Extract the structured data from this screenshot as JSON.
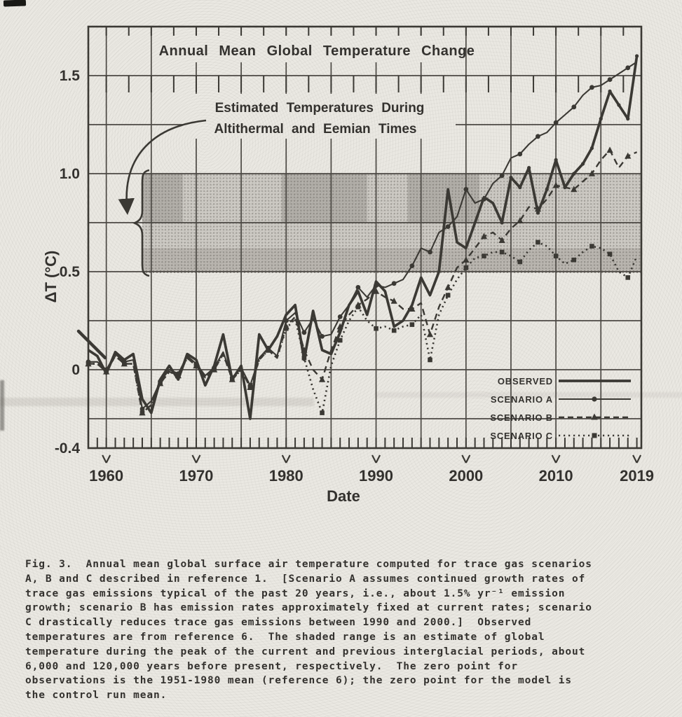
{
  "page": {
    "background": "#eae8e2",
    "ink_color": "#3b3934"
  },
  "chart_data": {
    "type": "line",
    "title": "Annual Mean Global Temperature Change",
    "annotation": {
      "line1": "Estimated Temperatures During",
      "line2": "Altithermal and Eemian Times"
    },
    "xlabel": "Date",
    "ylabel": "ΔT (°C)",
    "xlim": [
      1958,
      2019.5
    ],
    "ylim": [
      -0.4,
      1.75
    ],
    "grid": {
      "x_step_years": 5,
      "y_step": 0.25,
      "grid_on": true
    },
    "ytick_labels": [
      "1.5",
      "1.0",
      "0.5",
      "0",
      "-0.4"
    ],
    "ytick_values": [
      1.5,
      1.0,
      0.5,
      0,
      -0.4
    ],
    "xtick_labels": [
      "1960",
      "1970",
      "1980",
      "1990",
      "2000",
      "2010",
      "2019"
    ],
    "xtick_values": [
      1960,
      1970,
      1980,
      1990,
      2000,
      2010,
      2019
    ],
    "shaded_band": {
      "meaning": "Estimated temperatures during Altithermal and Eemian times",
      "y_from": 0.5,
      "y_to": 1.0,
      "x_from": 1964,
      "x_to": 2019.5
    },
    "legend_position": "lower right",
    "years": [
      1958,
      1959,
      1960,
      1961,
      1962,
      1963,
      1964,
      1965,
      1966,
      1967,
      1968,
      1969,
      1970,
      1971,
      1972,
      1973,
      1974,
      1975,
      1976,
      1977,
      1978,
      1979,
      1980,
      1981,
      1982,
      1983,
      1984,
      1985,
      1986,
      1987,
      1988,
      1989,
      1990,
      1991,
      1992,
      1993,
      1994,
      1995,
      1996,
      1997,
      1998,
      1999,
      2000,
      2001,
      2002,
      2003,
      2004,
      2005,
      2006,
      2007,
      2008,
      2009,
      2010,
      2011,
      2012,
      2013,
      2014,
      2015,
      2016,
      2017,
      2018,
      2019
    ],
    "series": [
      {
        "label": "OBSERVED",
        "key": "observed",
        "line": "solid",
        "marker": "dot-late",
        "values": [
          0.1,
          0.07,
          -0.02,
          0.09,
          0.05,
          0.08,
          -0.15,
          -0.22,
          -0.05,
          0.02,
          -0.05,
          0.08,
          0.05,
          -0.08,
          0.02,
          0.18,
          -0.05,
          0.02,
          -0.25,
          0.18,
          0.1,
          0.17,
          0.28,
          0.33,
          0.05,
          0.3,
          0.1,
          0.08,
          0.19,
          0.33,
          0.4,
          0.28,
          0.45,
          0.4,
          0.22,
          0.25,
          0.33,
          0.47,
          0.38,
          0.5,
          0.92,
          0.65,
          0.62,
          0.75,
          0.88,
          0.85,
          0.75,
          0.98,
          0.93,
          1.03,
          0.8,
          0.92,
          1.07,
          0.93,
          1.0,
          1.05,
          1.13,
          1.28,
          1.42,
          1.35,
          1.28,
          1.6
        ]
      },
      {
        "label": "SCENARIO A",
        "key": "scenario_a",
        "line": "solid",
        "marker": "circle",
        "values": [
          0.04,
          0.04,
          0.0,
          0.08,
          0.04,
          0.05,
          -0.2,
          -0.16,
          -0.06,
          0.0,
          -0.02,
          0.07,
          0.03,
          -0.03,
          0.01,
          0.09,
          -0.04,
          0.01,
          -0.08,
          0.06,
          0.11,
          0.07,
          0.25,
          0.29,
          0.19,
          0.26,
          0.17,
          0.18,
          0.27,
          0.33,
          0.42,
          0.37,
          0.43,
          0.42,
          0.44,
          0.46,
          0.53,
          0.62,
          0.6,
          0.7,
          0.73,
          0.78,
          0.92,
          0.85,
          0.87,
          0.95,
          0.99,
          1.08,
          1.1,
          1.15,
          1.19,
          1.21,
          1.26,
          1.3,
          1.34,
          1.4,
          1.44,
          1.45,
          1.48,
          1.51,
          1.54,
          1.57
        ]
      },
      {
        "label": "SCENARIO B",
        "key": "scenario_b",
        "line": "dashed",
        "marker": "triangle",
        "values": [
          0.03,
          0.03,
          -0.01,
          0.07,
          0.03,
          0.03,
          -0.22,
          -0.18,
          -0.07,
          -0.01,
          -0.03,
          0.06,
          0.02,
          -0.04,
          0.0,
          0.08,
          -0.05,
          0.0,
          -0.09,
          0.05,
          0.1,
          0.06,
          0.22,
          0.27,
          0.1,
          0.0,
          -0.05,
          0.1,
          0.22,
          0.28,
          0.33,
          0.36,
          0.4,
          0.37,
          0.35,
          0.31,
          0.31,
          0.34,
          0.18,
          0.32,
          0.42,
          0.52,
          0.56,
          0.62,
          0.68,
          0.7,
          0.66,
          0.72,
          0.76,
          0.83,
          0.82,
          0.87,
          0.94,
          0.93,
          0.92,
          0.96,
          1.0,
          1.07,
          1.12,
          1.03,
          1.09,
          1.11
        ]
      },
      {
        "label": "SCENARIO C",
        "key": "scenario_c",
        "line": "dotted",
        "marker": "square",
        "values": [
          0.03,
          0.03,
          -0.01,
          0.07,
          0.03,
          0.03,
          -0.22,
          -0.18,
          -0.07,
          -0.01,
          -0.03,
          0.06,
          0.02,
          -0.04,
          0.0,
          0.08,
          -0.05,
          0.0,
          -0.09,
          0.05,
          0.1,
          0.06,
          0.21,
          0.26,
          0.06,
          -0.1,
          -0.22,
          0.02,
          0.15,
          0.25,
          0.32,
          0.25,
          0.21,
          0.22,
          0.2,
          0.22,
          0.23,
          0.28,
          0.05,
          0.28,
          0.38,
          0.46,
          0.52,
          0.57,
          0.58,
          0.6,
          0.6,
          0.58,
          0.55,
          0.61,
          0.65,
          0.63,
          0.58,
          0.54,
          0.56,
          0.6,
          0.63,
          0.62,
          0.59,
          0.5,
          0.47,
          0.58
        ]
      }
    ]
  },
  "figure_caption": {
    "text": "Fig. 3.  Annual mean global surface air temperature computed for trace gas scenarios\nA, B and C described in reference 1.  [Scenario A assumes continued growth rates of\ntrace gas emissions typical of the past 20 years, i.e., about 1.5% yr⁻¹ emission\ngrowth; scenario B has emission rates approximately fixed at current rates; scenario\nC drastically reduces trace gas emissions between 1990 and 2000.]  Observed\ntemperatures are from reference 6.  The shaded range is an estimate of global\ntemperature during the peak of the current and previous interglacial periods, about\n6,000 and 120,000 years before present, respectively.  The zero point for\nobservations is the 1951-1980 mean (reference 6); the zero point for the model is\nthe control run mean."
  }
}
